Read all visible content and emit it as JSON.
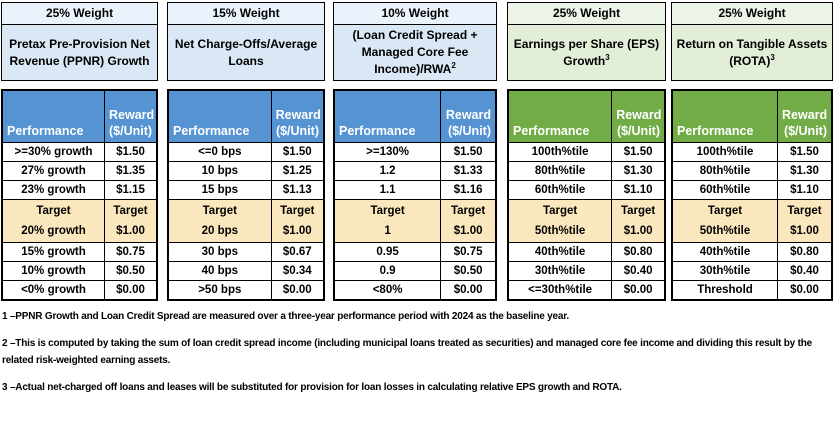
{
  "colors": {
    "blue_table_header": "#5593D2",
    "blue_weight_band": "#EAF2FB",
    "blue_metric_band": "#DAE7F4",
    "green_table_header": "#71AC47",
    "green_weight_band": "#ECF3E7",
    "green_metric_band": "#E3EED9",
    "target_row": "#FBE7BD",
    "border": "#000000"
  },
  "column_header": {
    "performance": "Performance",
    "reward_line1": "Reward",
    "reward_line2": "($/Unit)"
  },
  "tables": [
    {
      "weight": "25% Weight",
      "metric": "Pretax Pre-Provision Net Revenue (PPNR) Growth",
      "metric_superscript": "",
      "theme": "blue",
      "rows": [
        {
          "performance": ">=30% growth",
          "reward": "$1.50"
        },
        {
          "performance": "27% growth",
          "reward": "$1.35"
        },
        {
          "performance": "23% growth",
          "reward": "$1.15"
        },
        {
          "performance": "Target",
          "performance2": "20% growth",
          "reward": "Target",
          "reward2": "$1.00",
          "is_target": true
        },
        {
          "performance": "15% growth",
          "reward": "$0.75"
        },
        {
          "performance": "10% growth",
          "reward": "$0.50"
        },
        {
          "performance": "<0% growth",
          "reward": "$0.00"
        }
      ]
    },
    {
      "weight": "15% Weight",
      "metric": "Net Charge-Offs/Average Loans",
      "metric_superscript": "",
      "theme": "blue",
      "rows": [
        {
          "performance": "<=0 bps",
          "reward": "$1.50"
        },
        {
          "performance": "10 bps",
          "reward": "$1.25"
        },
        {
          "performance": "15 bps",
          "reward": "$1.13"
        },
        {
          "performance": "Target",
          "performance2": "20 bps",
          "reward": "Target",
          "reward2": "$1.00",
          "is_target": true
        },
        {
          "performance": "30 bps",
          "reward": "$0.67"
        },
        {
          "performance": "40 bps",
          "reward": "$0.34"
        },
        {
          "performance": ">50 bps",
          "reward": "$0.00"
        }
      ]
    },
    {
      "weight": "10% Weight",
      "metric": "(Loan Credit Spread + Managed Core Fee Income)/RWA",
      "metric_superscript": "2",
      "theme": "blue",
      "rows": [
        {
          "performance": ">=130%",
          "reward": "$1.50"
        },
        {
          "performance": "1.2",
          "reward": "$1.33"
        },
        {
          "performance": "1.1",
          "reward": "$1.16"
        },
        {
          "performance": "Target",
          "performance2": "1",
          "reward": "Target",
          "reward2": "$1.00",
          "is_target": true
        },
        {
          "performance": "0.95",
          "reward": "$0.75"
        },
        {
          "performance": "0.9",
          "reward": "$0.50"
        },
        {
          "performance": "<80%",
          "reward": "$0.00"
        }
      ]
    },
    {
      "weight": "25% Weight",
      "metric": "Earnings per Share (EPS) Growth",
      "metric_superscript": "3",
      "theme": "green",
      "rows": [
        {
          "performance": "100th%tile",
          "reward": "$1.50"
        },
        {
          "performance": "80th%tile",
          "reward": "$1.30"
        },
        {
          "performance": "60th%tile",
          "reward": "$1.10"
        },
        {
          "performance": "Target",
          "performance2": "50th%tile",
          "reward": "Target",
          "reward2": "$1.00",
          "is_target": true
        },
        {
          "performance": "40th%tile",
          "reward": "$0.80"
        },
        {
          "performance": "30th%tile",
          "reward": "$0.40"
        },
        {
          "performance": "<=30th%tile",
          "reward": "$0.00"
        }
      ]
    },
    {
      "weight": "25% Weight",
      "metric": "Return on Tangible Assets (ROTA)",
      "metric_superscript": "3",
      "theme": "green",
      "rows": [
        {
          "performance": "100th%tile",
          "reward": "$1.50"
        },
        {
          "performance": "80th%tile",
          "reward": "$1.30"
        },
        {
          "performance": "60th%tile",
          "reward": "$1.10"
        },
        {
          "performance": "Target",
          "performance2": "50th%tile",
          "reward": "Target",
          "reward2": "$1.00",
          "is_target": true
        },
        {
          "performance": "40th%tile",
          "reward": "$0.80"
        },
        {
          "performance": "30th%tile",
          "reward": "$0.40"
        },
        {
          "performance": "Threshold",
          "reward": "$0.00"
        }
      ]
    }
  ],
  "footnotes": [
    "1 –PPNR Growth and Loan Credit Spread are measured over a three-year performance period with 2024 as the baseline year.",
    "2 –This is computed by taking the sum of loan credit spread income (including municipal loans treated as securities) and managed core fee income and dividing this result by the related risk-weighted earning assets.",
    "3 –Actual net-charged off loans and leases will be substituted for provision for loan losses in calculating relative EPS growth and ROTA."
  ]
}
